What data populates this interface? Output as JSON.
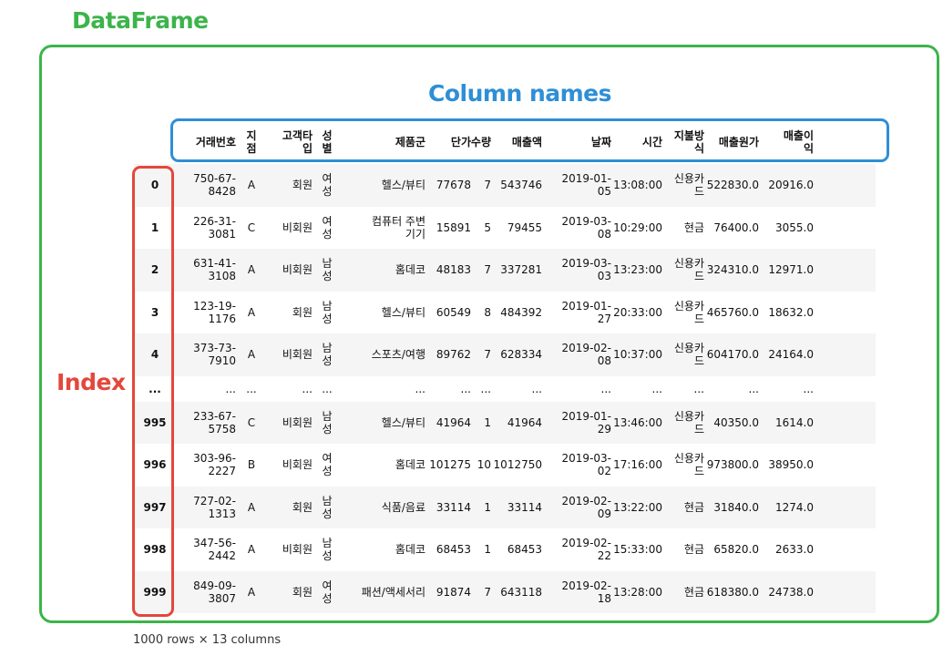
{
  "labels": {
    "dataframe": "DataFrame",
    "column_names": "Column names",
    "index": "Index"
  },
  "columns": [
    "거래번호",
    "지점",
    "고객타입",
    "성별",
    "제품군",
    "단가",
    "수량",
    "매출액",
    "날짜",
    "시간",
    "지불방식",
    "매출원가",
    "매출이익"
  ],
  "rows": [
    {
      "idx": "0",
      "v": [
        "750-67-8428",
        "A",
        "회원",
        "여성",
        "헬스/뷰티",
        "77678",
        "7",
        "543746",
        "2019-01-05",
        "13:08:00",
        "신용카드",
        "522830.0",
        "20916.0"
      ]
    },
    {
      "idx": "1",
      "v": [
        "226-31-3081",
        "C",
        "비회원",
        "여성",
        "컴퓨터 주변기기",
        "15891",
        "5",
        "79455",
        "2019-03-08",
        "10:29:00",
        "현금",
        "76400.0",
        "3055.0"
      ]
    },
    {
      "idx": "2",
      "v": [
        "631-41-3108",
        "A",
        "비회원",
        "남성",
        "홈데코",
        "48183",
        "7",
        "337281",
        "2019-03-03",
        "13:23:00",
        "신용카드",
        "324310.0",
        "12971.0"
      ]
    },
    {
      "idx": "3",
      "v": [
        "123-19-1176",
        "A",
        "회원",
        "남성",
        "헬스/뷰티",
        "60549",
        "8",
        "484392",
        "2019-01-27",
        "20:33:00",
        "신용카드",
        "465760.0",
        "18632.0"
      ]
    },
    {
      "idx": "4",
      "v": [
        "373-73-7910",
        "A",
        "비회원",
        "남성",
        "스포츠/여행",
        "89762",
        "7",
        "628334",
        "2019-02-08",
        "10:37:00",
        "신용카드",
        "604170.0",
        "24164.0"
      ]
    },
    {
      "idx": "...",
      "v": [
        "...",
        "...",
        "...",
        "...",
        "...",
        "...",
        "...",
        "...",
        "...",
        "...",
        "...",
        "...",
        "..."
      ]
    },
    {
      "idx": "995",
      "v": [
        "233-67-5758",
        "C",
        "비회원",
        "남성",
        "헬스/뷰티",
        "41964",
        "1",
        "41964",
        "2019-01-29",
        "13:46:00",
        "신용카드",
        "40350.0",
        "1614.0"
      ]
    },
    {
      "idx": "996",
      "v": [
        "303-96-2227",
        "B",
        "비회원",
        "여성",
        "홈데코",
        "101275",
        "10",
        "1012750",
        "2019-03-02",
        "17:16:00",
        "신용카드",
        "973800.0",
        "38950.0"
      ]
    },
    {
      "idx": "997",
      "v": [
        "727-02-1313",
        "A",
        "회원",
        "남성",
        "식품/음료",
        "33114",
        "1",
        "33114",
        "2019-02-09",
        "13:22:00",
        "현금",
        "31840.0",
        "1274.0"
      ]
    },
    {
      "idx": "998",
      "v": [
        "347-56-2442",
        "A",
        "비회원",
        "남성",
        "홈데코",
        "68453",
        "1",
        "68453",
        "2019-02-22",
        "15:33:00",
        "현금",
        "65820.0",
        "2633.0"
      ]
    },
    {
      "idx": "999",
      "v": [
        "849-09-3807",
        "A",
        "회원",
        "여성",
        "패션/액세서리",
        "91874",
        "7",
        "643118",
        "2019-02-18",
        "13:28:00",
        "현금",
        "618380.0",
        "24738.0"
      ]
    }
  ],
  "footer": "1000 rows × 13 columns",
  "colors": {
    "dataframe": "#3cb44b",
    "columns": "#2e8fd6",
    "index": "#e4473b",
    "stripe": "#f5f5f5"
  }
}
